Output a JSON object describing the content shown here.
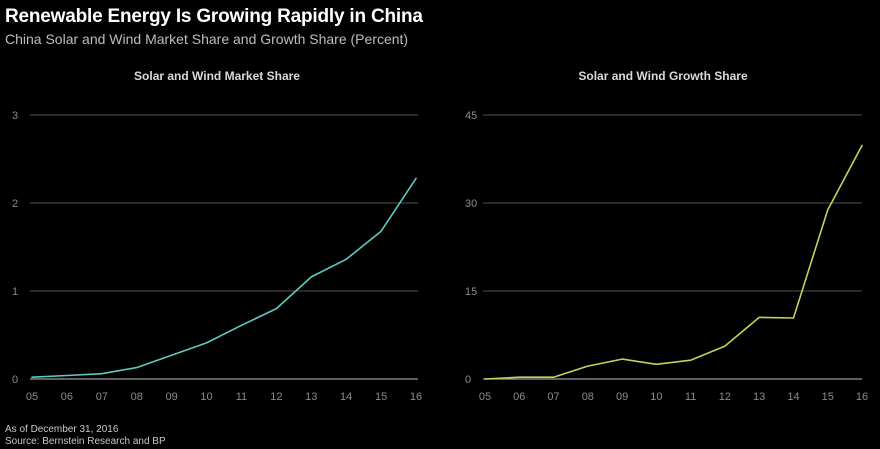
{
  "header": {
    "title": "Renewable Energy Is Growing Rapidly in China",
    "subtitle": "China Solar and Wind Market Share and Growth Share (Percent)"
  },
  "footer": {
    "as_of": "As of December 31, 2016",
    "source": "Source: Bernstein Research and BP"
  },
  "colors": {
    "background": "#000000",
    "gridline": "#6e6e6e",
    "tick_text": "#8a8a8a",
    "chart_title": "#d9d9d9",
    "market_share_line": "#5fc9c2",
    "growth_share_line": "#c9cf5a"
  },
  "chart_data": [
    {
      "type": "line",
      "title": "Solar and Wind Market Share",
      "xlabel": "",
      "ylabel": "",
      "categories": [
        "05",
        "06",
        "07",
        "08",
        "09",
        "10",
        "11",
        "12",
        "13",
        "14",
        "15",
        "16"
      ],
      "yticks": [
        0,
        1,
        2,
        3
      ],
      "ylim": [
        0,
        3
      ],
      "grid": true,
      "series": [
        {
          "values": [
            0.02,
            0.04,
            0.06,
            0.13,
            0.27,
            0.41,
            0.61,
            0.8,
            1.16,
            1.36,
            1.68,
            2.28
          ]
        }
      ]
    },
    {
      "type": "line",
      "title": "Solar and Wind Growth Share",
      "xlabel": "",
      "ylabel": "",
      "categories": [
        "05",
        "06",
        "07",
        "08",
        "09",
        "10",
        "11",
        "12",
        "13",
        "14",
        "15",
        "16"
      ],
      "yticks": [
        0,
        15,
        30,
        45
      ],
      "ylim": [
        0,
        45
      ],
      "grid": true,
      "series": [
        {
          "values": [
            0.0,
            0.3,
            0.3,
            2.2,
            3.4,
            2.5,
            3.2,
            5.6,
            10.5,
            10.4,
            28.8,
            39.8
          ]
        }
      ]
    }
  ]
}
